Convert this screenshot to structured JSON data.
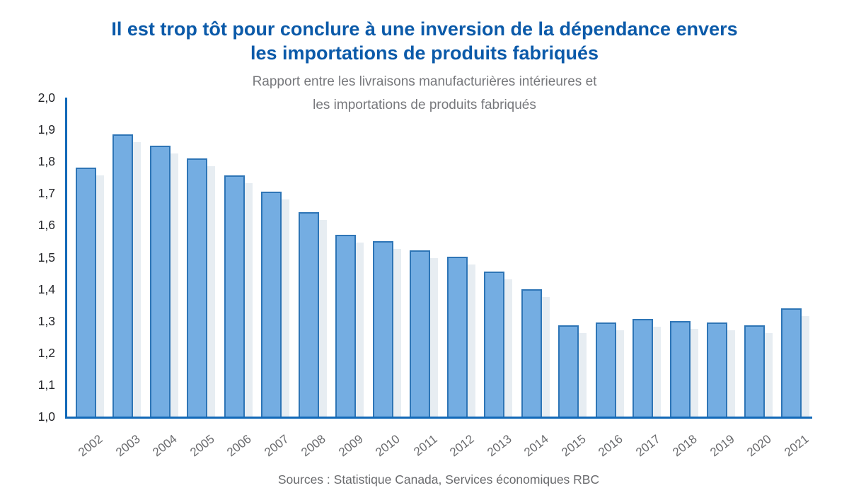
{
  "header": {
    "title_line1": "Il est trop tôt pour conclure à une inversion de la dépendance envers",
    "title_line2": "les importations de produits fabriqués",
    "subtitle_line1": "Rapport entre les livraisons manufacturières intérieures et",
    "subtitle_line2": "les importations de produits fabriqués"
  },
  "footer": {
    "source": "Sources : Statistique Canada, Services économiques RBC"
  },
  "chart_data": {
    "type": "bar",
    "title": "Il est trop tôt pour conclure à une inversion de la dépendance envers les importations de produits fabriqués",
    "subtitle": "Rapport entre les livraisons manufacturières intérieures et les importations de produits fabriqués",
    "source": "Sources : Statistique Canada, Services économiques RBC",
    "categories": [
      "2002",
      "2003",
      "2004",
      "2005",
      "2006",
      "2007",
      "2008",
      "2009",
      "2010",
      "2011",
      "2012",
      "2013",
      "2014",
      "2015",
      "2016",
      "2017",
      "2018",
      "2019",
      "2020",
      "2021"
    ],
    "values": [
      1.78,
      1.885,
      1.85,
      1.81,
      1.755,
      1.705,
      1.64,
      1.57,
      1.55,
      1.52,
      1.5,
      1.455,
      1.4,
      1.285,
      1.295,
      1.305,
      1.3,
      1.295,
      1.285,
      1.34
    ],
    "xlabel": "",
    "ylabel": "",
    "ylim": [
      1.0,
      2.0
    ],
    "ytick_step": 0.1,
    "ytick_labels": [
      "2,0",
      "1,9",
      "1,8",
      "1,7",
      "1,6",
      "1,5",
      "1,4",
      "1,3",
      "1,2",
      "1,1",
      "1,0"
    ],
    "grid": false,
    "legend": "none",
    "decimal_separator": ",",
    "colors": {
      "bar_fill": "#74ade2",
      "bar_border": "#2e75b6",
      "bar_shadow": "#e7edf2",
      "axis": "#1269b8",
      "title": "#0b5aa9",
      "subtitle_gray": "#77787c",
      "tick_gray": "#6a6b6e",
      "ytick_dark": "#25262a"
    }
  }
}
